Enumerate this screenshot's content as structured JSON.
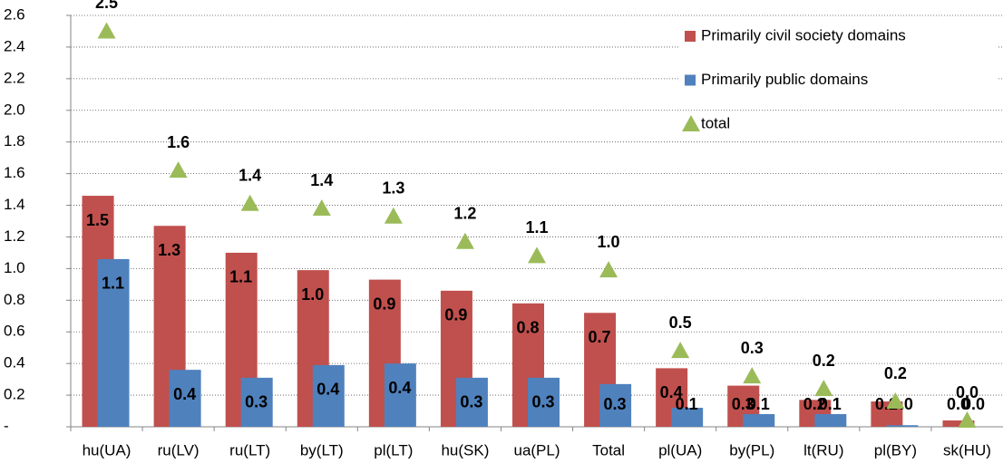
{
  "chart_data": {
    "type": "bar",
    "categories": [
      "hu(UA)",
      "ru(LV)",
      "ru(LT)",
      "by(LT)",
      "pl(LT)",
      "hu(SK)",
      "ua(PL)",
      "Total",
      "pl(UA)",
      "by(PL)",
      "lt(RU)",
      "pl(BY)",
      "sk(HU)"
    ],
    "series": [
      {
        "name": "Primarily civil society domains",
        "color": "#c0504d",
        "values": [
          1.46,
          1.27,
          1.1,
          0.99,
          0.93,
          0.86,
          0.78,
          0.72,
          0.37,
          0.26,
          0.17,
          0.16,
          0.04
        ],
        "value_labels": [
          "1.5",
          "1.3",
          "1.1",
          "1.0",
          "0.9",
          "0.9",
          "0.8",
          "0.7",
          "0.4",
          "0.3",
          "0.2",
          "0.2",
          "0.0"
        ]
      },
      {
        "name": "Primarily public domains",
        "color": "#4f81bd",
        "values": [
          1.06,
          0.36,
          0.31,
          0.39,
          0.4,
          0.31,
          0.31,
          0.27,
          0.12,
          0.08,
          0.08,
          0.01,
          0.0
        ],
        "value_labels": [
          "1.1",
          "0.4",
          "0.3",
          "0.4",
          "0.4",
          "0.3",
          "0.3",
          "0.3",
          "0.1",
          "0.1",
          "0.1",
          "0.0",
          "0.0"
        ]
      },
      {
        "name": "total",
        "color": "#9bbb59",
        "marker": "triangle",
        "values": [
          2.5,
          1.62,
          1.41,
          1.38,
          1.33,
          1.17,
          1.08,
          0.99,
          0.48,
          0.32,
          0.24,
          0.16,
          0.04
        ],
        "value_labels": [
          "2.5",
          "1.6",
          "1.4",
          "1.4",
          "1.3",
          "1.2",
          "1.1",
          "1.0",
          "0.5",
          "0.3",
          "0.2",
          "0.2",
          "0.0"
        ]
      }
    ],
    "ylim": [
      0,
      2.6
    ],
    "yticks": [
      {
        "value": 0,
        "label": "-"
      },
      0.2,
      0.4,
      0.6,
      0.8,
      {
        "value": 1,
        "label": "1.0"
      },
      1.2,
      1.4,
      1.6,
      1.8,
      {
        "value": 2,
        "label": "2.0"
      },
      2.2,
      2.4,
      2.6
    ],
    "grid": true,
    "legend": "top-right"
  }
}
